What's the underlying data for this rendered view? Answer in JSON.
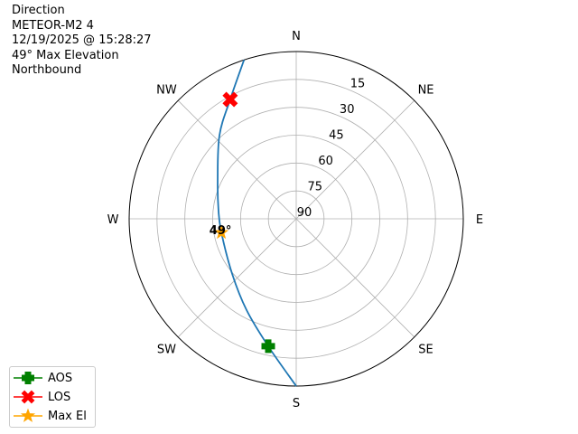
{
  "chart_data": {
    "type": "polar",
    "title_lines": [
      "Direction",
      "METEOR-M2 4",
      "12/19/2025 @ 15:28:27",
      "49° Max Elevation",
      "Northbound"
    ],
    "direction_labels": [
      "N",
      "NE",
      "E",
      "SE",
      "S",
      "SW",
      "W",
      "NW"
    ],
    "radial_ticks": [
      15,
      30,
      45,
      60,
      75,
      90
    ],
    "radial_range": [
      0,
      90
    ],
    "radial_axis": "elevation, 90 at center",
    "grid": true,
    "track": {
      "color": "#1f77b4",
      "azimuth": [
        180,
        192.4,
        208.6,
        229.3,
        259.6,
        276.0,
        295.8,
        317.3,
        331.0,
        341.8
      ],
      "elevation": [
        0,
        19.8,
        34.1,
        44.5,
        49,
        47.9,
        43.0,
        29.0,
        16.6,
        0
      ]
    },
    "markers": [
      {
        "name": "AOS",
        "azimuth": 192.4,
        "elevation": 19.8,
        "color": "#008000",
        "shape": "plus"
      },
      {
        "name": "LOS",
        "azimuth": 331.0,
        "elevation": 16.6,
        "color": "#ff0000",
        "shape": "x"
      },
      {
        "name": "Max El",
        "azimuth": 259.6,
        "elevation": 49,
        "color": "#ffa500",
        "shape": "star"
      }
    ],
    "max_el_label": "49°",
    "legend_position": "bottom-left"
  }
}
